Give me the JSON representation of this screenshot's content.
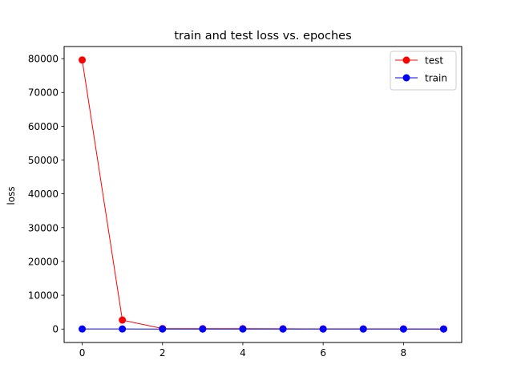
{
  "chart_data": {
    "type": "line",
    "title": "train and test loss vs. epoches",
    "xlabel": "",
    "ylabel": "loss",
    "xlim": [
      -0.45,
      9.45
    ],
    "ylim": [
      -3980,
      83580
    ],
    "xticks": [
      0,
      2,
      4,
      6,
      8
    ],
    "yticks": [
      0,
      10000,
      20000,
      30000,
      40000,
      50000,
      60000,
      70000,
      80000
    ],
    "grid": false,
    "legend_position": "top-right",
    "x": [
      0,
      1,
      2,
      3,
      4,
      5,
      6,
      7,
      8,
      9
    ],
    "series": [
      {
        "name": "test",
        "color": "#ff0000",
        "marker": "circle",
        "values": [
          79600,
          2650,
          150,
          110,
          100,
          70,
          60,
          50,
          40,
          30
        ]
      },
      {
        "name": "train",
        "color": "#0000ff",
        "marker": "circle",
        "values": [
          20,
          10,
          8,
          6,
          5,
          4,
          4,
          3,
          3,
          3
        ]
      }
    ]
  }
}
